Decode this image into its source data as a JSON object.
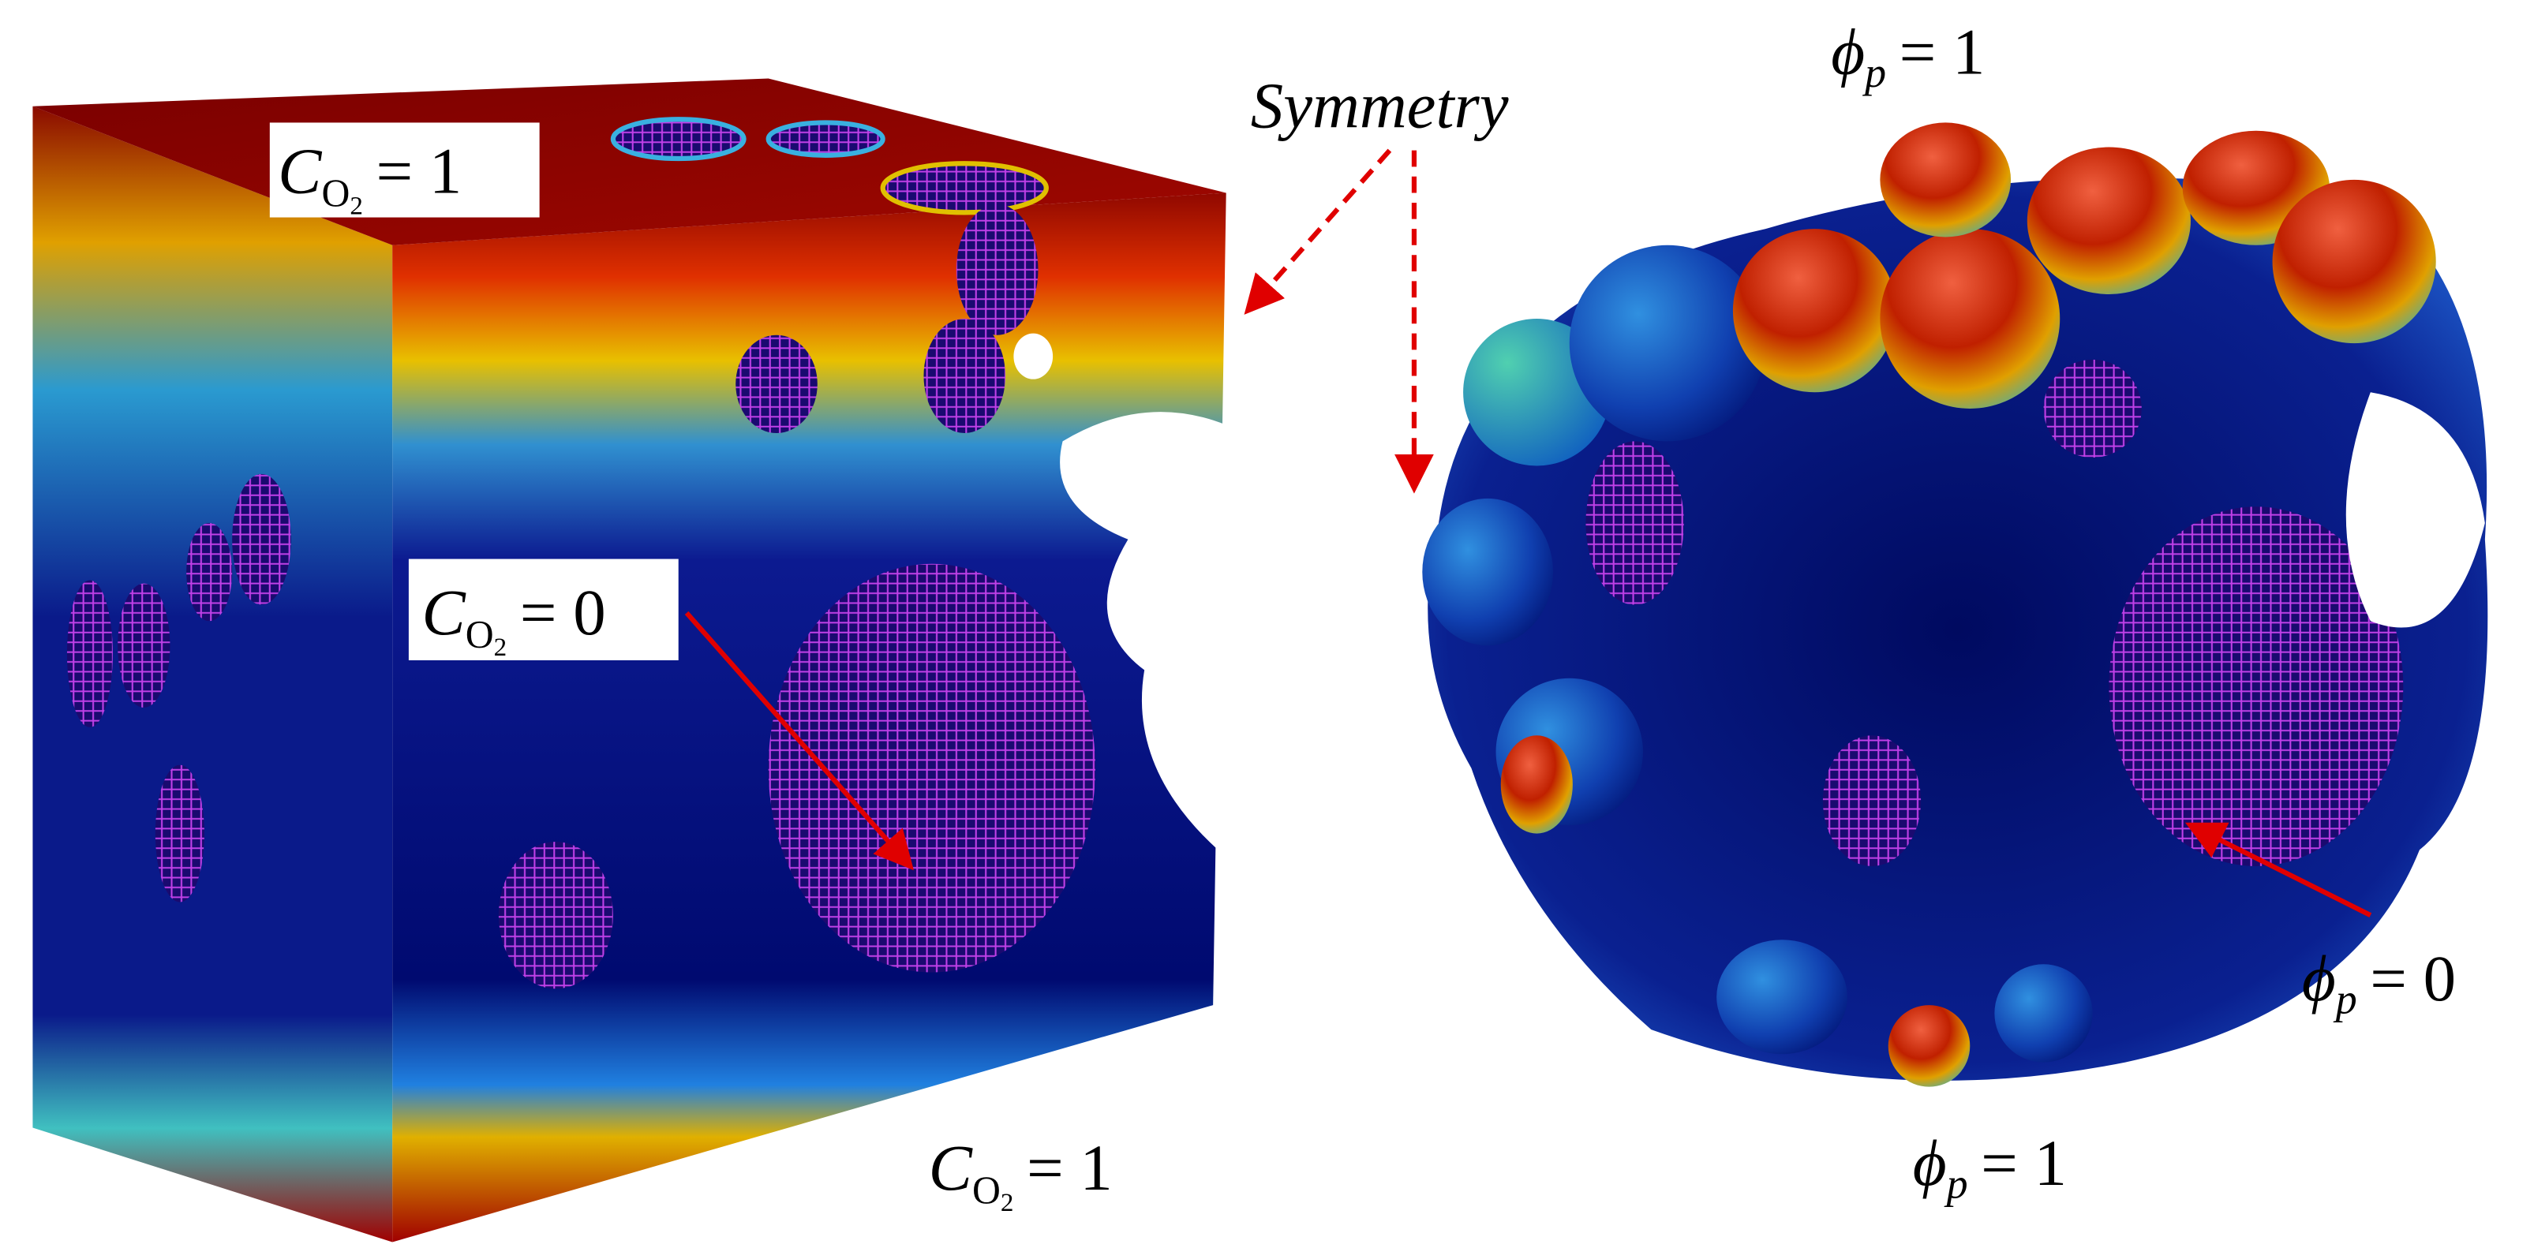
{
  "left_labels": [
    {
      "symbol": "C",
      "sub": "O",
      "subsub": "2",
      "relation": "= 1"
    },
    {
      "symbol": "C",
      "sub": "O",
      "subsub": "2",
      "relation": "= 0"
    },
    {
      "symbol": "C",
      "sub": "O",
      "subsub": "2",
      "relation": "= 1"
    }
  ],
  "symmetry": "Symmetry",
  "right_labels": [
    {
      "symbol": "ϕ",
      "sub": "p",
      "relation": "= 1"
    },
    {
      "symbol": "ϕ",
      "sub": "p",
      "relation": "= 0"
    },
    {
      "symbol": "ϕ",
      "sub": "p",
      "relation": "= 1"
    }
  ]
}
